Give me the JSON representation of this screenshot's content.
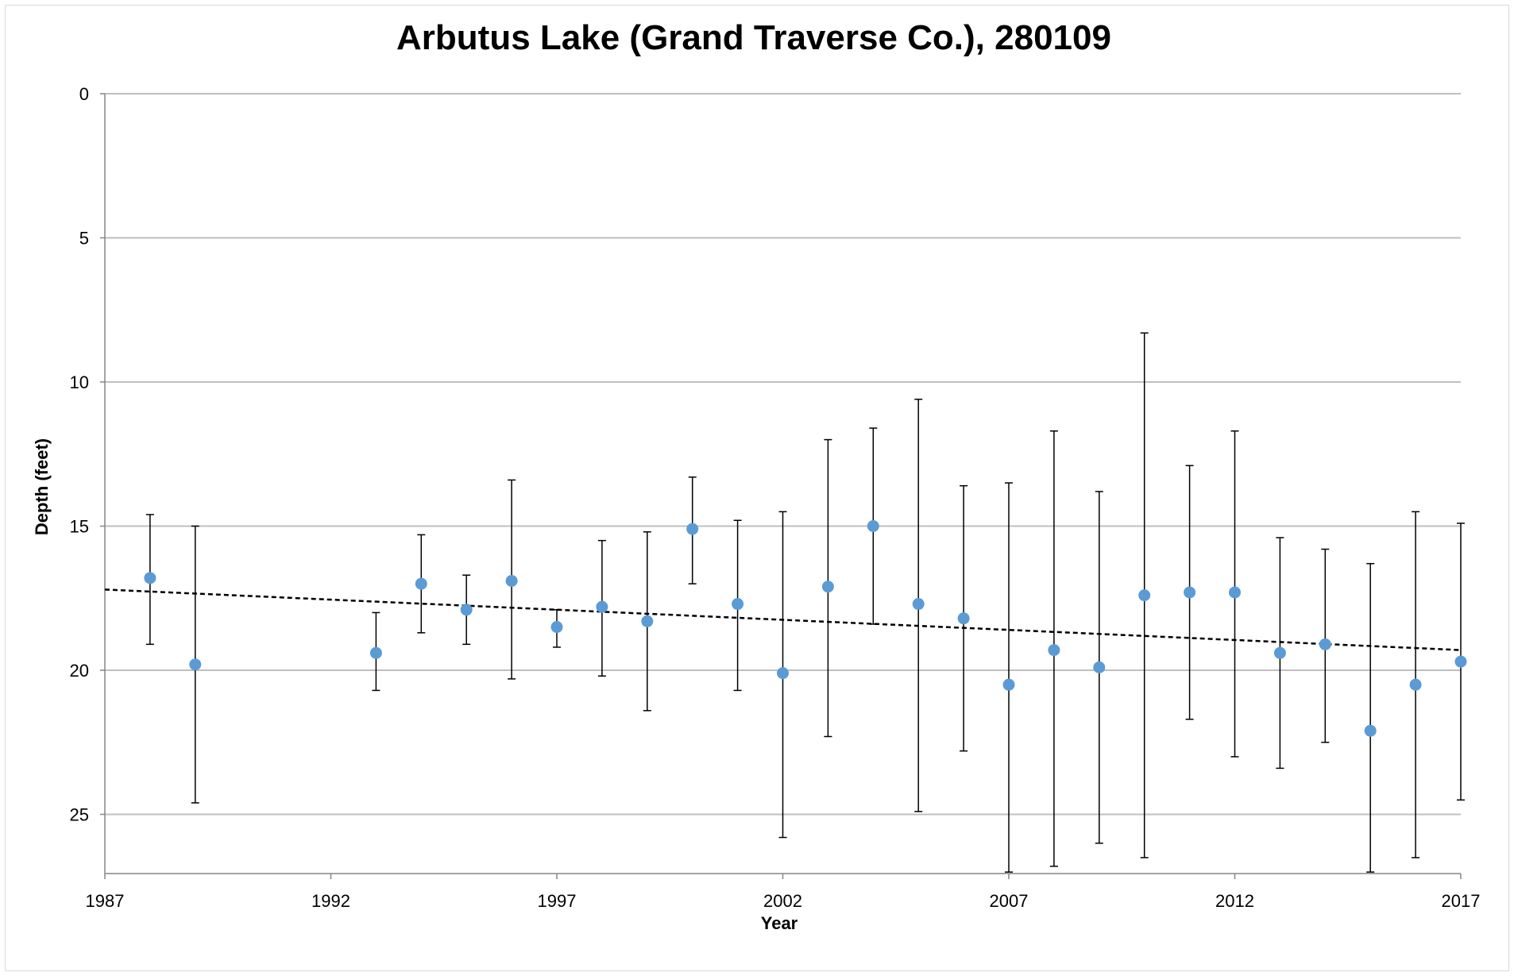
{
  "chart_data": {
    "type": "scatter",
    "title": "Arbutus Lake (Grand Traverse Co.), 280109",
    "xlabel": "Year",
    "ylabel": "Depth (feet)",
    "xlim": [
      1987,
      2017
    ],
    "ylim": [
      0,
      27
    ],
    "y_inverted": true,
    "x_ticks": [
      1987,
      1992,
      1997,
      2002,
      2007,
      2012,
      2017
    ],
    "y_ticks": [
      0,
      5,
      10,
      15,
      20,
      25
    ],
    "grid": "horizontal",
    "legend": "none",
    "colors": {
      "marker": "#5b9bd5",
      "error_bar": "#000000",
      "trend": "#000000",
      "grid": "#bfbfbf",
      "axis": "#868686"
    },
    "points": [
      {
        "x": 1988,
        "y": 16.8,
        "lo": 14.6,
        "hi": 19.1
      },
      {
        "x": 1989,
        "y": 19.8,
        "lo": 15.0,
        "hi": 24.6
      },
      {
        "x": 1993,
        "y": 19.4,
        "lo": 18.0,
        "hi": 20.7
      },
      {
        "x": 1994,
        "y": 17.0,
        "lo": 15.3,
        "hi": 18.7
      },
      {
        "x": 1995,
        "y": 17.9,
        "lo": 16.7,
        "hi": 19.1
      },
      {
        "x": 1996,
        "y": 16.9,
        "lo": 13.4,
        "hi": 20.3
      },
      {
        "x": 1997,
        "y": 18.5,
        "lo": 17.9,
        "hi": 19.2
      },
      {
        "x": 1998,
        "y": 17.8,
        "lo": 15.5,
        "hi": 20.2
      },
      {
        "x": 1999,
        "y": 18.3,
        "lo": 15.2,
        "hi": 21.4
      },
      {
        "x": 2000,
        "y": 15.1,
        "lo": 13.3,
        "hi": 17.0
      },
      {
        "x": 2001,
        "y": 17.7,
        "lo": 14.8,
        "hi": 20.7
      },
      {
        "x": 2002,
        "y": 20.1,
        "lo": 14.5,
        "hi": 25.8
      },
      {
        "x": 2003,
        "y": 17.1,
        "lo": 12.0,
        "hi": 22.3
      },
      {
        "x": 2004,
        "y": 15.0,
        "lo": 11.6,
        "hi": 18.4
      },
      {
        "x": 2005,
        "y": 17.7,
        "lo": 10.6,
        "hi": 24.9
      },
      {
        "x": 2006,
        "y": 18.2,
        "lo": 13.6,
        "hi": 22.8
      },
      {
        "x": 2007,
        "y": 20.5,
        "lo": 13.5,
        "hi": 27.0
      },
      {
        "x": 2008,
        "y": 19.3,
        "lo": 11.7,
        "hi": 26.8
      },
      {
        "x": 2009,
        "y": 19.9,
        "lo": 13.8,
        "hi": 26.0
      },
      {
        "x": 2010,
        "y": 17.4,
        "lo": 8.3,
        "hi": 26.5
      },
      {
        "x": 2011,
        "y": 17.3,
        "lo": 12.9,
        "hi": 21.7
      },
      {
        "x": 2012,
        "y": 17.3,
        "lo": 11.7,
        "hi": 23.0
      },
      {
        "x": 2013,
        "y": 19.4,
        "lo": 15.4,
        "hi": 23.4
      },
      {
        "x": 2014,
        "y": 19.1,
        "lo": 15.8,
        "hi": 22.5
      },
      {
        "x": 2015,
        "y": 22.1,
        "lo": 16.3,
        "hi": 27.0
      },
      {
        "x": 2016,
        "y": 20.5,
        "lo": 14.5,
        "hi": 26.5
      },
      {
        "x": 2017,
        "y": 19.7,
        "lo": 14.9,
        "hi": 24.5
      }
    ],
    "trendline": {
      "style": "dashed",
      "x": [
        1987,
        2017
      ],
      "y": [
        17.2,
        19.3
      ]
    }
  }
}
